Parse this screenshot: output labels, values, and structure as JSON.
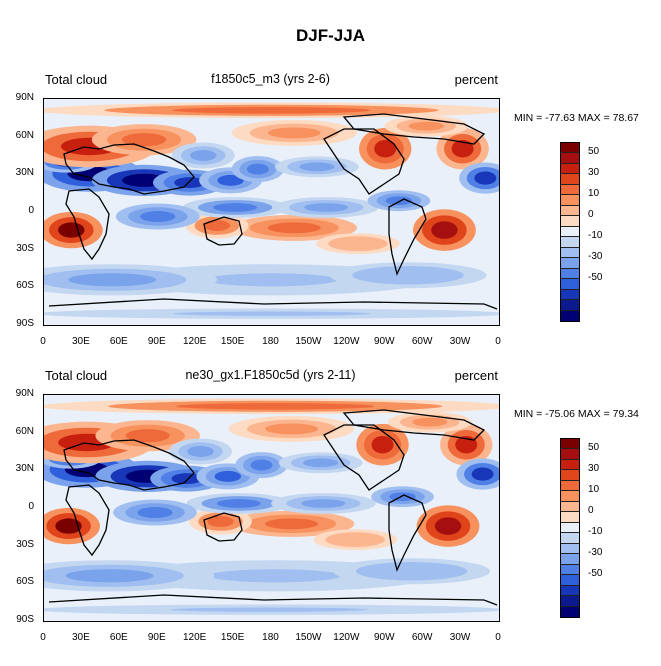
{
  "figure": {
    "title": "DJF-JJA"
  },
  "colorbar": {
    "colors": [
      "#7a0000",
      "#a50f0f",
      "#c8200e",
      "#e0441a",
      "#ef6a3a",
      "#f7915e",
      "#fbb690",
      "#fddbc2",
      "#e9f0fa",
      "#c4d7f0",
      "#a0bff0",
      "#7aa3ec",
      "#5080e6",
      "#2f5fda",
      "#1737b8",
      "#0b1a8f",
      "#000073"
    ],
    "labels": [
      "50",
      "30",
      "10",
      "0",
      "-10",
      "-30",
      "-50"
    ]
  },
  "panels": [
    {
      "left_label": "Total cloud",
      "center_label": "f1850c5_m3 (yrs 2-6)",
      "right_label": "percent",
      "min_max": "MIN = -77.63 MAX =  78.67"
    },
    {
      "left_label": "Total cloud",
      "center_label": "ne30_gx1.F1850c5d (yrs 2-11)",
      "right_label": "percent",
      "min_max": "MIN = -75.06 MAX =  79.34"
    }
  ],
  "chart_data": [
    {
      "type": "heatmap",
      "title": "f1850c5_m3 (yrs 2-6)",
      "variable": "Total cloud",
      "units": "percent",
      "min": -77.63,
      "max": 78.67,
      "x_ticks": [
        "0",
        "30E",
        "60E",
        "90E",
        "120E",
        "150E",
        "180",
        "150W",
        "120W",
        "90W",
        "60W",
        "30W",
        "0"
      ],
      "y_ticks": [
        "90N",
        "60N",
        "30N",
        "0",
        "30S",
        "60S",
        "90S"
      ],
      "xlim": [
        0,
        360
      ],
      "ylim": [
        -90,
        90
      ],
      "levels": [
        -70,
        -60,
        -50,
        -40,
        -30,
        -20,
        -10,
        -5,
        5,
        10,
        20,
        30,
        40,
        50,
        60,
        70
      ],
      "colorbar_labels": [
        "50",
        "30",
        "10",
        "0",
        "-10",
        "-30",
        "-50"
      ]
    },
    {
      "type": "heatmap",
      "title": "ne30_gx1.F1850c5d (yrs 2-11)",
      "variable": "Total cloud",
      "units": "percent",
      "min": -75.06,
      "max": 79.34,
      "x_ticks": [
        "0",
        "30E",
        "60E",
        "90E",
        "120E",
        "150E",
        "180",
        "150W",
        "120W",
        "90W",
        "60W",
        "30W",
        "0"
      ],
      "y_ticks": [
        "90N",
        "60N",
        "30N",
        "0",
        "30S",
        "60S",
        "90S"
      ],
      "xlim": [
        0,
        360
      ],
      "ylim": [
        -90,
        90
      ],
      "levels": [
        -70,
        -60,
        -50,
        -40,
        -30,
        -20,
        -10,
        -5,
        5,
        10,
        20,
        30,
        40,
        50,
        60,
        70
      ],
      "colorbar_labels": [
        "50",
        "30",
        "10",
        "0",
        "-10",
        "-30",
        "-50"
      ]
    }
  ]
}
